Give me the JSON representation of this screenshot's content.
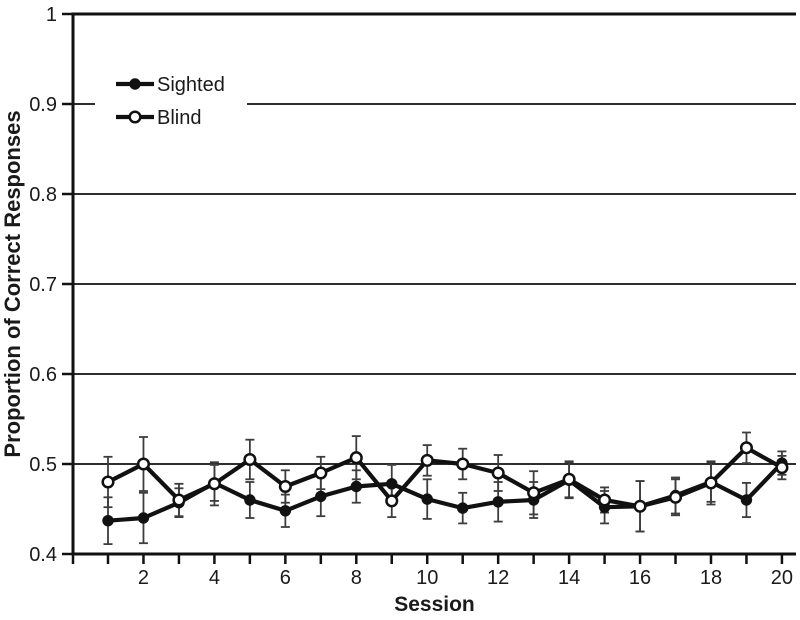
{
  "page": {
    "background": "#ffffff",
    "ink_color": "#111111",
    "error_bar_color": "#3d3d3d"
  },
  "chart_data": {
    "type": "line",
    "title": "",
    "xlabel": "Session",
    "ylabel": "Proportion of Correct Responses",
    "ylim": [
      0.4,
      1.0
    ],
    "yticks": [
      0.4,
      0.5,
      0.6,
      0.7,
      0.8,
      0.9,
      1.0
    ],
    "ytick_labels": [
      "0.4",
      "0.5",
      "0.6",
      "0.7",
      "0.8",
      "0.9",
      "1"
    ],
    "gridlines_y": [
      0.5,
      0.6,
      0.7,
      0.8,
      0.9
    ],
    "grid": "horizontal-only",
    "x": [
      1,
      2,
      3,
      4,
      5,
      6,
      7,
      8,
      9,
      10,
      11,
      12,
      13,
      14,
      15,
      16,
      17,
      18,
      19,
      20
    ],
    "xticks": [
      1,
      2,
      3,
      4,
      5,
      6,
      7,
      8,
      9,
      10,
      11,
      12,
      13,
      14,
      15,
      16,
      17,
      18,
      19,
      20
    ],
    "xtick_labeled": [
      2,
      4,
      6,
      8,
      10,
      12,
      14,
      16,
      18,
      20
    ],
    "series": [
      {
        "name": "Sighted",
        "marker": "filled-circle",
        "color": "#111111",
        "values": [
          0.437,
          0.44,
          0.457,
          0.479,
          0.46,
          0.448,
          0.464,
          0.475,
          0.478,
          0.461,
          0.451,
          0.458,
          0.46,
          0.482,
          0.452,
          0.453,
          0.465,
          0.48,
          0.46,
          0.501
        ],
        "errors": [
          0.026,
          0.028,
          0.016,
          0.02,
          0.02,
          0.018,
          0.022,
          0.018,
          0.021,
          0.022,
          0.017,
          0.022,
          0.02,
          0.02,
          0.018,
          0.028,
          0.02,
          0.022,
          0.019,
          0.013
        ]
      },
      {
        "name": "Blind",
        "marker": "open-circle",
        "color": "#111111",
        "values": [
          0.48,
          0.5,
          0.46,
          0.478,
          0.505,
          0.475,
          0.49,
          0.507,
          0.459,
          0.504,
          0.5,
          0.49,
          0.468,
          0.483,
          0.46,
          0.453,
          0.463,
          0.479,
          0.518,
          0.496
        ],
        "errors": [
          0.028,
          0.03,
          0.018,
          0.024,
          0.022,
          0.018,
          0.018,
          0.024,
          0.018,
          0.017,
          0.017,
          0.02,
          0.024,
          0.02,
          0.014,
          0.028,
          0.02,
          0.024,
          0.017,
          0.013
        ]
      }
    ],
    "legend": {
      "position": "top-left-inside",
      "items": [
        "Sighted",
        "Blind"
      ]
    }
  }
}
